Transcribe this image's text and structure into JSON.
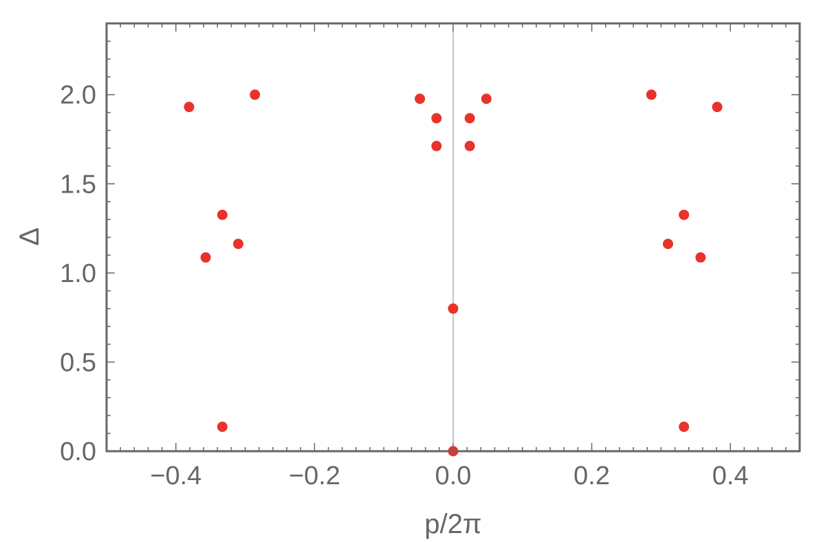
{
  "chart_data": {
    "type": "scatter",
    "title": "",
    "xlabel": "p/2π",
    "ylabel": "Δ",
    "xlim": [
      -0.5,
      0.5
    ],
    "ylim": [
      0.0,
      2.4
    ],
    "x_ticks": [
      -0.4,
      -0.2,
      0.0,
      0.2,
      0.4
    ],
    "x_tick_labels": [
      "−0.4",
      "−0.2",
      "0.0",
      "0.2",
      "0.4"
    ],
    "y_ticks": [
      0.0,
      0.5,
      1.0,
      1.5,
      2.0
    ],
    "y_tick_labels": [
      "0.0",
      "0.5",
      "1.0",
      "1.5",
      "2.0"
    ],
    "grid": false,
    "marker_color": "#e8322b",
    "frame_color": "#666666",
    "reference_line_x": 0.0,
    "series": [
      {
        "points": [
          {
            "x": -0.381,
            "y": 1.931
          },
          {
            "x": -0.286,
            "y": 2.0
          },
          {
            "x": -0.048,
            "y": 1.977
          },
          {
            "x": -0.024,
            "y": 1.868
          },
          {
            "x": 0.024,
            "y": 1.868
          },
          {
            "x": 0.048,
            "y": 1.977
          },
          {
            "x": 0.286,
            "y": 2.0
          },
          {
            "x": 0.381,
            "y": 1.931
          },
          {
            "x": -0.024,
            "y": 1.712
          },
          {
            "x": 0.024,
            "y": 1.712
          },
          {
            "x": -0.333,
            "y": 1.326
          },
          {
            "x": 0.333,
            "y": 1.326
          },
          {
            "x": -0.31,
            "y": 1.163
          },
          {
            "x": 0.31,
            "y": 1.163
          },
          {
            "x": -0.357,
            "y": 1.087
          },
          {
            "x": 0.357,
            "y": 1.087
          },
          {
            "x": 0.0,
            "y": 0.8
          },
          {
            "x": -0.333,
            "y": 0.137
          },
          {
            "x": 0.333,
            "y": 0.137
          },
          {
            "x": 0.0,
            "y": 0.0
          }
        ]
      }
    ]
  }
}
